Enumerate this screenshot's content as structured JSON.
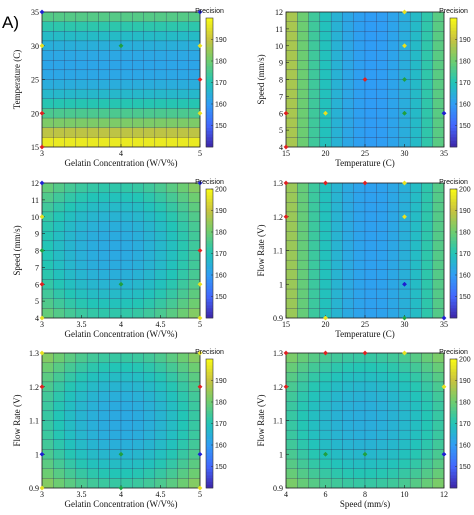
{
  "panel_label": "A)",
  "colormap": [
    "#3e26a8",
    "#4367fd",
    "#2f9df5",
    "#22c5b6",
    "#6fcd6f",
    "#c8c33f",
    "#f9fb15"
  ],
  "chart_data": [
    {
      "type": "heatmap",
      "xlabel": "Gelatin Concentration (W/V%)",
      "ylabel": "Temperature (C)",
      "xlim": [
        3,
        5
      ],
      "ylim": [
        15,
        35
      ],
      "xticks": [
        "3",
        "4",
        "5"
      ],
      "yticks": [
        "15",
        "20",
        "25",
        "30",
        "35"
      ],
      "grid_n": 14,
      "colorbar": {
        "label": "Precision",
        "clim": [
          140,
          200
        ],
        "ticks": [
          "150",
          "160",
          "170",
          "180",
          "190"
        ]
      },
      "surface": {
        "type": "quad",
        "vary": "y",
        "center_ax": 0.5,
        "center_ay": 0.6,
        "base": 162,
        "kx": 30,
        "ky": 110
      },
      "points": [
        {
          "x": 3,
          "y": 35,
          "color": "#1f1fd0"
        },
        {
          "x": 3,
          "y": 30,
          "color": "#e8e020"
        },
        {
          "x": 3,
          "y": 20,
          "color": "#e02020"
        },
        {
          "x": 3,
          "y": 15,
          "color": "#e02020"
        },
        {
          "x": 4,
          "y": 30,
          "color": "#20a040"
        },
        {
          "x": 5,
          "y": 35,
          "color": "#1f1fd0"
        },
        {
          "x": 5,
          "y": 30,
          "color": "#e8e020"
        },
        {
          "x": 5,
          "y": 25,
          "color": "#e02020"
        },
        {
          "x": 5,
          "y": 20,
          "color": "#e8e020"
        }
      ]
    },
    {
      "type": "heatmap",
      "xlabel": "Temperature (C)",
      "ylabel": "Speed (mm/s)",
      "xlim": [
        15,
        35
      ],
      "ylim": [
        4,
        12
      ],
      "xticks": [
        "15",
        "20",
        "25",
        "30",
        "35"
      ],
      "yticks": [
        "4",
        "5",
        "6",
        "7",
        "8",
        "9",
        "10",
        "11",
        "12"
      ],
      "grid_n": 14,
      "colorbar": {
        "label": "Precision",
        "clim": [
          140,
          200
        ],
        "ticks": [
          "150",
          "160",
          "170",
          "180",
          "190"
        ]
      },
      "surface": {
        "type": "quad",
        "vary": "x",
        "center_ax": 0.55,
        "center_ay": 0.35,
        "base": 160,
        "kx": 100,
        "ky": 40
      },
      "points": [
        {
          "x": 15,
          "y": 6,
          "color": "#e02020"
        },
        {
          "x": 15,
          "y": 4,
          "color": "#e02020"
        },
        {
          "x": 20,
          "y": 6,
          "color": "#e8e020"
        },
        {
          "x": 25,
          "y": 8,
          "color": "#e02020"
        },
        {
          "x": 30,
          "y": 12,
          "color": "#e8e020"
        },
        {
          "x": 30,
          "y": 10,
          "color": "#e8e020"
        },
        {
          "x": 30,
          "y": 8,
          "color": "#20a040"
        },
        {
          "x": 30,
          "y": 6,
          "color": "#20a040"
        },
        {
          "x": 35,
          "y": 6,
          "color": "#1f1fd0"
        }
      ]
    },
    {
      "type": "heatmap",
      "xlabel": "Gelatin Concentration (W/V%)",
      "ylabel": "Speed (mm/s)",
      "xlim": [
        3,
        5
      ],
      "ylim": [
        4,
        12
      ],
      "xticks": [
        "3",
        "3.5",
        "4",
        "4.5",
        "5"
      ],
      "yticks": [
        "4",
        "5",
        "6",
        "7",
        "8",
        "9",
        "10",
        "11",
        "12"
      ],
      "grid_n": 14,
      "colorbar": {
        "label": "Precision",
        "clim": [
          140,
          200
        ],
        "ticks": [
          "150",
          "160",
          "170",
          "180",
          "190",
          "200"
        ]
      },
      "surface": {
        "type": "quad",
        "vary": "both",
        "center_ax": 0.45,
        "center_ay": 0.5,
        "base": 163,
        "kx": 40,
        "ky": 40
      },
      "points": [
        {
          "x": 3,
          "y": 12,
          "color": "#1f1fd0"
        },
        {
          "x": 3,
          "y": 10,
          "color": "#e8e020"
        },
        {
          "x": 3,
          "y": 8,
          "color": "#20a040"
        },
        {
          "x": 3,
          "y": 6,
          "color": "#e02020"
        },
        {
          "x": 3,
          "y": 4,
          "color": "#e8e020"
        },
        {
          "x": 4,
          "y": 6,
          "color": "#20a040"
        },
        {
          "x": 5,
          "y": 12,
          "color": "#1f1fd0"
        },
        {
          "x": 5,
          "y": 8,
          "color": "#e02020"
        },
        {
          "x": 5,
          "y": 6,
          "color": "#e8e020"
        },
        {
          "x": 5,
          "y": 4,
          "color": "#e8e020"
        }
      ]
    },
    {
      "type": "heatmap",
      "xlabel": "Temperature (C)",
      "ylabel": "Flow Rate (V)",
      "xlim": [
        15,
        35
      ],
      "ylim": [
        0.9,
        1.3
      ],
      "xticks": [
        "15",
        "20",
        "25",
        "30",
        "35"
      ],
      "yticks": [
        "0.9",
        "1",
        "1.1",
        "1.2",
        "1.3"
      ],
      "grid_n": 14,
      "colorbar": {
        "label": "Precision",
        "clim": [
          140,
          200
        ],
        "ticks": [
          "150",
          "160",
          "170",
          "180",
          "190",
          "200"
        ]
      },
      "surface": {
        "type": "quad",
        "vary": "x",
        "center_ax": 0.55,
        "center_ay": 0.4,
        "base": 161,
        "kx": 90,
        "ky": 25
      },
      "points": [
        {
          "x": 15,
          "y": 1.3,
          "color": "#e02020"
        },
        {
          "x": 15,
          "y": 1.2,
          "color": "#e02020"
        },
        {
          "x": 20,
          "y": 1.3,
          "color": "#e02020"
        },
        {
          "x": 20,
          "y": 0.9,
          "color": "#e8e020"
        },
        {
          "x": 25,
          "y": 1.3,
          "color": "#e02020"
        },
        {
          "x": 30,
          "y": 1.3,
          "color": "#e8e020"
        },
        {
          "x": 30,
          "y": 1.2,
          "color": "#e8e020"
        },
        {
          "x": 30,
          "y": 1.0,
          "color": "#1f1fd0"
        },
        {
          "x": 30,
          "y": 0.9,
          "color": "#20a040"
        },
        {
          "x": 35,
          "y": 0.9,
          "color": "#1f1fd0"
        }
      ]
    },
    {
      "type": "heatmap",
      "xlabel": "Gelatin Concentration (W/V%)",
      "ylabel": "Flow Rate (V)",
      "xlim": [
        3,
        5
      ],
      "ylim": [
        0.9,
        1.3
      ],
      "xticks": [
        "3",
        "3.5",
        "4",
        "4.5",
        "5"
      ],
      "yticks": [
        "0.9",
        "1",
        "1.1",
        "1.2",
        "1.3"
      ],
      "grid_n": 14,
      "colorbar": {
        "label": "Precision",
        "clim": [
          140,
          200
        ],
        "ticks": [
          "150",
          "160",
          "170",
          "180",
          "190"
        ]
      },
      "surface": {
        "type": "quad",
        "vary": "both",
        "center_ax": 0.5,
        "center_ay": 0.5,
        "base": 163,
        "kx": 45,
        "ky": 45
      },
      "points": [
        {
          "x": 3,
          "y": 1.3,
          "color": "#e8e020"
        },
        {
          "x": 3,
          "y": 1.2,
          "color": "#e02020"
        },
        {
          "x": 3,
          "y": 1.0,
          "color": "#1f1fd0"
        },
        {
          "x": 3,
          "y": 0.9,
          "color": "#e8e020"
        },
        {
          "x": 4,
          "y": 1.0,
          "color": "#20a040"
        },
        {
          "x": 4,
          "y": 0.9,
          "color": "#20a040"
        },
        {
          "x": 5,
          "y": 1.3,
          "color": "#e8e020"
        },
        {
          "x": 5,
          "y": 1.2,
          "color": "#e02020"
        },
        {
          "x": 5,
          "y": 1.0,
          "color": "#1f1fd0"
        },
        {
          "x": 5,
          "y": 0.9,
          "color": "#e8e020"
        }
      ]
    },
    {
      "type": "heatmap",
      "xlabel": "Speed (mm/s)",
      "ylabel": "Flow Rate (V)",
      "xlim": [
        4,
        12
      ],
      "ylim": [
        0.9,
        1.3
      ],
      "xticks": [
        "4",
        "6",
        "8",
        "10",
        "12"
      ],
      "yticks": [
        "0.9",
        "1",
        "1.1",
        "1.2",
        "1.3"
      ],
      "grid_n": 14,
      "colorbar": {
        "label": "Precision",
        "clim": [
          140,
          200
        ],
        "ticks": [
          "150",
          "160",
          "170",
          "180",
          "190",
          "200"
        ]
      },
      "surface": {
        "type": "quad",
        "vary": "both",
        "center_ax": 0.5,
        "center_ay": 0.5,
        "base": 164,
        "kx": 40,
        "ky": 40
      },
      "points": [
        {
          "x": 4,
          "y": 1.3,
          "color": "#e02020"
        },
        {
          "x": 4,
          "y": 1.2,
          "color": "#e02020"
        },
        {
          "x": 6,
          "y": 1.3,
          "color": "#e02020"
        },
        {
          "x": 6,
          "y": 1.0,
          "color": "#20a040"
        },
        {
          "x": 8,
          "y": 1.3,
          "color": "#e02020"
        },
        {
          "x": 8,
          "y": 1.0,
          "color": "#20a040"
        },
        {
          "x": 10,
          "y": 1.3,
          "color": "#e8e020"
        },
        {
          "x": 12,
          "y": 1.2,
          "color": "#e8e020"
        },
        {
          "x": 12,
          "y": 1.0,
          "color": "#1f1fd0"
        }
      ]
    }
  ]
}
